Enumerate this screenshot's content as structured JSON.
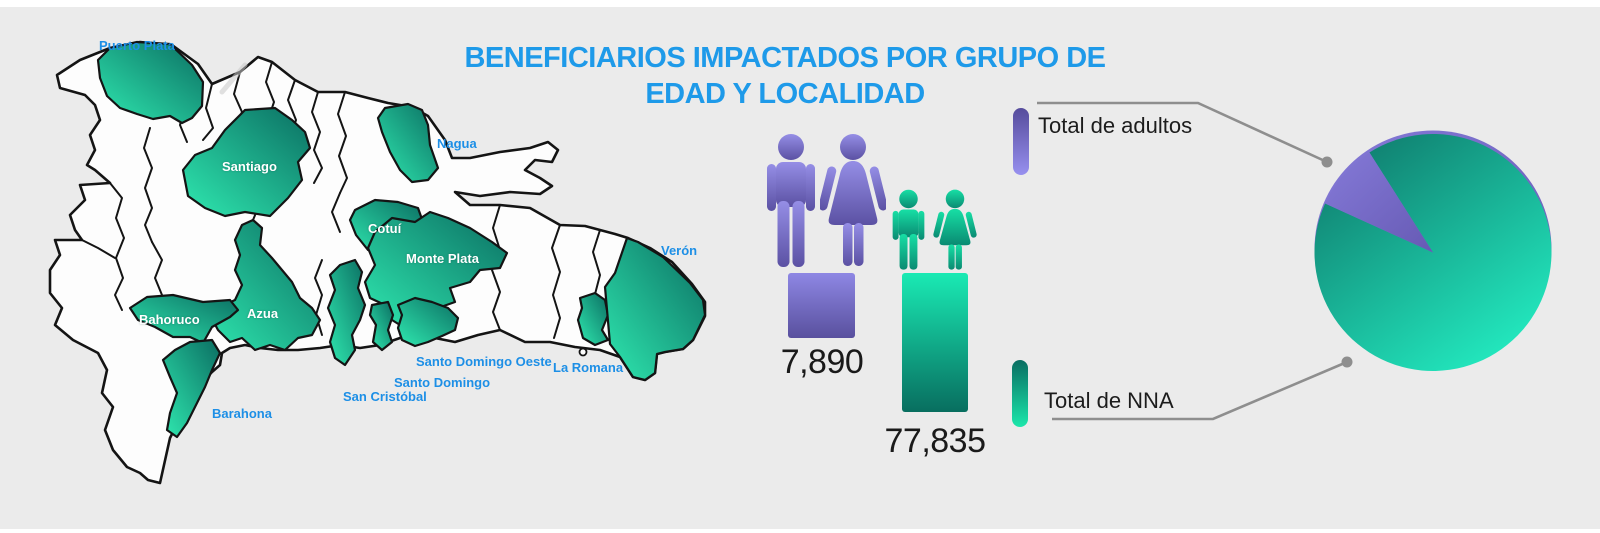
{
  "title": {
    "line1": "BENEFICIARIOS IMPACTADOS POR GRUPO DE",
    "line2": "EDAD Y LOCALIDAD"
  },
  "map": {
    "country": "República Dominicana",
    "labels": [
      {
        "text": "Puerto Plata",
        "style": "blue"
      },
      {
        "text": "Santiago",
        "style": "white"
      },
      {
        "text": "Nagua",
        "style": "blue"
      },
      {
        "text": "Cotuí",
        "style": "white"
      },
      {
        "text": "Monte Plata",
        "style": "white"
      },
      {
        "text": "Verón",
        "style": "blue"
      },
      {
        "text": "Azua",
        "style": "white"
      },
      {
        "text": "Bahoruco",
        "style": "white"
      },
      {
        "text": "Santo Domingo Oeste",
        "style": "blue"
      },
      {
        "text": "La Romana",
        "style": "blue"
      },
      {
        "text": "Santo Domingo",
        "style": "blue"
      },
      {
        "text": "San Cristóbal",
        "style": "blue"
      },
      {
        "text": "Barahona",
        "style": "blue"
      }
    ]
  },
  "stats": {
    "adults": {
      "legend_label": "Total de adultos",
      "value_label": "7,890"
    },
    "nna": {
      "legend_label": "Total de NNA",
      "value_label": "77,835"
    }
  },
  "colors": {
    "title_blue": "#1e9ae9",
    "map_label_blue": "#1d8fe6",
    "purple": "#6f65c8",
    "teal": "#12cfa0",
    "callout_gray": "#8e8e8e",
    "background": "#ebebeb"
  },
  "chart_data": [
    {
      "type": "bar",
      "categories": [
        "Total de adultos",
        "Total de NNA"
      ],
      "values": [
        7890,
        77835
      ],
      "value_labels": [
        "7,890",
        "77,835"
      ],
      "series_colors": [
        "#6f65c8",
        "#12cfa0"
      ],
      "title": "Beneficiarios impactados por grupo de edad",
      "xlabel": "",
      "ylabel": ""
    },
    {
      "type": "pie",
      "slices": [
        {
          "label": "Total de adultos",
          "value": 7890,
          "color": "#7468c8"
        },
        {
          "label": "Total de NNA",
          "value": 77835,
          "color": "#12cfa0"
        }
      ],
      "legend_position": "left"
    }
  ]
}
